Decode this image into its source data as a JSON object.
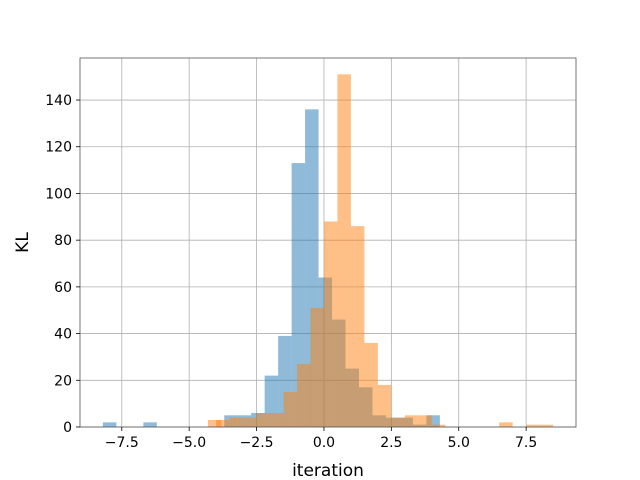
{
  "chart_data": {
    "type": "bar",
    "subtype": "overlapping-histogram",
    "title": "",
    "xlabel": "iteration",
    "ylabel": "KL",
    "xlim": [
      -9.05,
      9.35
    ],
    "ylim": [
      0,
      158
    ],
    "grid": true,
    "legend": "none",
    "x_ticks": [
      -7.5,
      -5.0,
      -2.5,
      0.0,
      2.5,
      5.0,
      7.5
    ],
    "x_tick_labels": [
      "−7.5",
      "−5.0",
      "−2.5",
      "0.0",
      "2.5",
      "5.0",
      "7.5"
    ],
    "y_ticks": [
      0,
      20,
      40,
      60,
      80,
      100,
      120,
      140
    ],
    "y_tick_labels": [
      "0",
      "20",
      "40",
      "60",
      "80",
      "100",
      "120",
      "140"
    ],
    "series": [
      {
        "color": "#1f77b4",
        "alpha": 0.5,
        "bin_width": 0.5,
        "bin_starts": [
          -8.2,
          -6.7,
          -3.7,
          -3.2,
          -2.7,
          -2.2,
          -1.7,
          -1.2,
          -0.7,
          -0.2,
          0.3,
          0.8,
          1.3,
          1.8,
          2.3,
          2.8,
          3.3,
          3.8
        ],
        "counts": [
          2,
          2,
          5,
          5,
          6,
          22,
          39,
          113,
          136,
          64,
          46,
          25,
          17,
          5,
          4,
          4,
          1,
          5
        ]
      },
      {
        "color": "#ff7f0e",
        "alpha": 0.5,
        "bin_width": 0.5,
        "bin_starts": [
          -4.3,
          -4.0,
          -3.5,
          -3.0,
          -2.5,
          -2.0,
          -1.5,
          -1.0,
          -0.5,
          0.0,
          0.5,
          1.0,
          1.5,
          2.0,
          2.5,
          3.0,
          3.5,
          4.0,
          6.5,
          7.5,
          8.0
        ],
        "counts": [
          3,
          3,
          4,
          4,
          6,
          6,
          15,
          27,
          51,
          88,
          151,
          86,
          36,
          18,
          4,
          5,
          5,
          1,
          2,
          1,
          1
        ]
      }
    ]
  }
}
